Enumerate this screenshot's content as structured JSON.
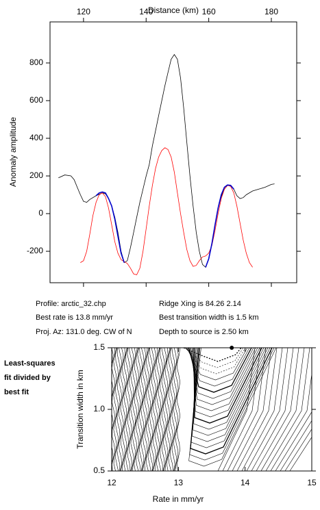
{
  "chart_data": [
    {
      "type": "line",
      "title": "Distance (km)",
      "ylabel": "Anomaly amplitude",
      "xlim": [
        109.3,
        188.1
      ],
      "xticks": [
        120,
        140,
        160,
        180
      ],
      "ylim": [
        -367,
        1018
      ],
      "yticks": [
        -200,
        0,
        200,
        400,
        600,
        800
      ],
      "series": [
        {
          "color": "#000000",
          "x": [
            112,
            114,
            116,
            117,
            118,
            119,
            120,
            121,
            122,
            124,
            126,
            127,
            128,
            129,
            130,
            131,
            132,
            133,
            134,
            135,
            136,
            137,
            138,
            139,
            140,
            141,
            142,
            143,
            144,
            145,
            146,
            147,
            148,
            149,
            150,
            151,
            152,
            153,
            154,
            155,
            156,
            157,
            158,
            159,
            160,
            161,
            162,
            163,
            164,
            165,
            166,
            167,
            168,
            169,
            170,
            171,
            172,
            174,
            176,
            178,
            180,
            181
          ],
          "values": [
            190,
            205,
            200,
            180,
            140,
            100,
            65,
            60,
            75,
            95,
            110,
            105,
            80,
            40,
            -20,
            -100,
            -200,
            -260,
            -250,
            -180,
            -100,
            -20,
            60,
            130,
            200,
            260,
            360,
            440,
            520,
            600,
            680,
            750,
            820,
            845,
            820,
            720,
            560,
            380,
            200,
            40,
            -100,
            -200,
            -270,
            -285,
            -240,
            -160,
            -60,
            30,
            90,
            130,
            150,
            150,
            130,
            95,
            80,
            85,
            100,
            120,
            130,
            140,
            155,
            158
          ]
        },
        {
          "color": "#ff0000",
          "x": [
            119,
            120,
            121,
            122,
            123,
            124,
            125,
            126,
            127,
            128,
            129,
            130,
            131,
            132,
            133,
            134,
            135,
            136,
            137,
            138,
            139,
            140,
            141,
            142,
            143,
            144,
            145,
            146,
            147,
            148,
            149,
            150,
            151,
            152,
            153,
            154,
            155,
            156,
            157,
            158,
            159,
            160,
            161,
            162,
            163,
            164,
            165,
            166,
            167,
            168,
            169,
            170,
            171,
            172,
            173,
            174
          ],
          "values": [
            -260,
            -250,
            -200,
            -110,
            -10,
            60,
            100,
            110,
            90,
            30,
            -60,
            -150,
            -210,
            -245,
            -255,
            -265,
            -290,
            -320,
            -325,
            -290,
            -200,
            -80,
            40,
            150,
            240,
            300,
            335,
            350,
            340,
            300,
            220,
            110,
            0,
            -100,
            -190,
            -250,
            -280,
            -275,
            -250,
            -230,
            -225,
            -210,
            -170,
            -90,
            0,
            80,
            130,
            150,
            145,
            110,
            40,
            -50,
            -140,
            -210,
            -260,
            -285
          ]
        },
        {
          "color": "#0000cc",
          "x": [
            124,
            125,
            126,
            127,
            128,
            129,
            130,
            131,
            132,
            133,
            null,
            159,
            160,
            161,
            162,
            163,
            164,
            165,
            166,
            167,
            168
          ],
          "values": [
            95,
            110,
            115,
            110,
            80,
            40,
            -30,
            -120,
            -210,
            -260,
            null,
            -285,
            -240,
            -160,
            -60,
            30,
            100,
            140,
            152,
            150,
            130
          ]
        }
      ]
    },
    {
      "type": "contour",
      "xlabel": "Rate in mm/yr",
      "ylabel": "Transition width in km",
      "xlim": [
        12,
        15
      ],
      "xticks": [
        12,
        13,
        14,
        15
      ],
      "ylim": [
        0.5,
        1.5
      ],
      "yticks": [
        0.5,
        {
          "value": 1,
          "label": "1.0"
        },
        1.5
      ],
      "x": [
        13.8
      ],
      "values": [
        1.5
      ]
    }
  ],
  "annotations": [
    "Profile: arctic_32.chp",
    "Best rate is 13.8 mm/yr",
    "Proj. Az: 131.0 deg. CW of N",
    "Ridge Xing is 84.26 2.14",
    "Best transition width is 1.5 km",
    "Depth to source is   2.50 km"
  ],
  "side_label": [
    "Least-squares",
    "fit divided by",
    "best fit"
  ]
}
